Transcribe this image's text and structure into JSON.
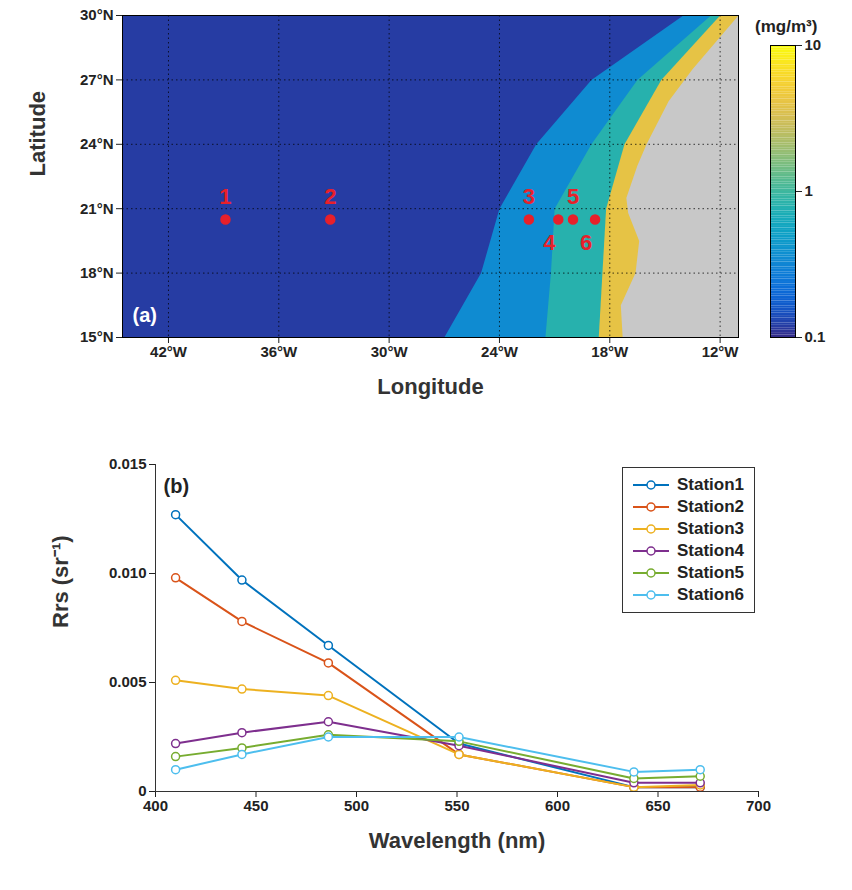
{
  "chart_data": [
    {
      "type": "map",
      "panel_label": "(a)",
      "x_label": "Longitude",
      "y_label": "Latitude",
      "xlim": [
        -44.5,
        -11
      ],
      "ylim": [
        15,
        30
      ],
      "xticks": [
        {
          "value": -42,
          "label": "42°W"
        },
        {
          "value": -36,
          "label": "36°W"
        },
        {
          "value": -30,
          "label": "30°W"
        },
        {
          "value": -24,
          "label": "24°W"
        },
        {
          "value": -18,
          "label": "18°W"
        },
        {
          "value": -12,
          "label": "12°W"
        }
      ],
      "yticks": [
        {
          "value": 15,
          "label": "15°N"
        },
        {
          "value": 18,
          "label": "18°N"
        },
        {
          "value": 21,
          "label": "21°N"
        },
        {
          "value": 24,
          "label": "24°N"
        },
        {
          "value": 27,
          "label": "27°N"
        },
        {
          "value": 30,
          "label": "30°N"
        }
      ],
      "grid": true,
      "colorbar": {
        "title": "(mg/m³)",
        "log": true,
        "range": [
          0.1,
          10
        ],
        "ticks": [
          0.1,
          1,
          10
        ]
      },
      "chlorophyll_zones": [
        {
          "value": 0.12,
          "lon": [
            -44.5,
            -11,
            -11,
            -44.5
          ],
          "lat": [
            15,
            15,
            30,
            30
          ]
        },
        {
          "value": 0.35,
          "lon": [
            -27,
            -25,
            -24,
            -22,
            -19,
            -14,
            -11,
            -11
          ],
          "lat": [
            15,
            18,
            21,
            24,
            27,
            30,
            30,
            15
          ]
        },
        {
          "value": 0.8,
          "lon": [
            -21.5,
            -21.2,
            -21,
            -19,
            -16.5,
            -12.5,
            -11,
            -11
          ],
          "lat": [
            15,
            18,
            21,
            24,
            27,
            30,
            30,
            15
          ]
        },
        {
          "value": 4,
          "lon": [
            -18.6,
            -18.4,
            -18.2,
            -17.2,
            -15.2,
            -12,
            -11,
            -11
          ],
          "lat": [
            15,
            18,
            21,
            24,
            27,
            30,
            30,
            15
          ]
        }
      ],
      "land": {
        "color": "#c8c8c8",
        "lon": [
          -17.3,
          -17.4,
          -16.6,
          -16.4,
          -17.0,
          -17.1,
          -16.5,
          -16.0,
          -14.8,
          -13.5,
          -12.2,
          -11.2,
          -11,
          -11
        ],
        "lat": [
          15,
          16.5,
          18,
          19.5,
          20.8,
          21.5,
          23,
          24,
          26,
          27.5,
          28.8,
          29.8,
          30,
          15
        ]
      },
      "stations": {
        "names": [
          "1",
          "2",
          "3",
          "4",
          "5",
          "6"
        ],
        "lon": [
          -38.9,
          -33.2,
          -22.4,
          -20.8,
          -20.0,
          -18.8
        ],
        "lat": [
          20.5,
          20.5,
          20.5,
          20.5,
          20.5,
          20.5
        ],
        "color": "#e8202a",
        "marker": "circle"
      }
    },
    {
      "type": "line",
      "panel_label": "(b)",
      "x_label": "Wavelength (nm)",
      "y_label": "Rrs (sr⁻¹)",
      "x": [
        410,
        443,
        486,
        551,
        638,
        671
      ],
      "xlim": [
        400,
        700
      ],
      "xticks": [
        400,
        450,
        500,
        550,
        600,
        650,
        700
      ],
      "ylim": [
        0,
        0.015
      ],
      "yticks": [
        0,
        0.005,
        {
          "value": 0.01,
          "label": "0.010"
        },
        {
          "value": 0.015,
          "label": "0.015"
        }
      ],
      "legend": "top-right",
      "marker": "circle",
      "series": [
        {
          "name": "Station1",
          "color": "#0072bd",
          "values": [
            0.0127,
            0.0097,
            0.0067,
            0.0022,
            0.0002,
            0.0002
          ]
        },
        {
          "name": "Station2",
          "color": "#d95319",
          "values": [
            0.0098,
            0.0078,
            0.0059,
            0.0017,
            0.0002,
            0.0002
          ]
        },
        {
          "name": "Station3",
          "color": "#edb120",
          "values": [
            0.0051,
            0.0047,
            0.0044,
            0.0017,
            0.0002,
            0.0003
          ]
        },
        {
          "name": "Station4",
          "color": "#7e2f8e",
          "values": [
            0.0022,
            0.0027,
            0.0032,
            0.0021,
            0.0004,
            0.0004
          ]
        },
        {
          "name": "Station5",
          "color": "#77ac30",
          "values": [
            0.0016,
            0.002,
            0.0026,
            0.0023,
            0.0006,
            0.0007
          ]
        },
        {
          "name": "Station6",
          "color": "#4dbeee",
          "values": [
            0.001,
            0.0017,
            0.0025,
            0.0025,
            0.0009,
            0.001
          ]
        }
      ]
    }
  ]
}
